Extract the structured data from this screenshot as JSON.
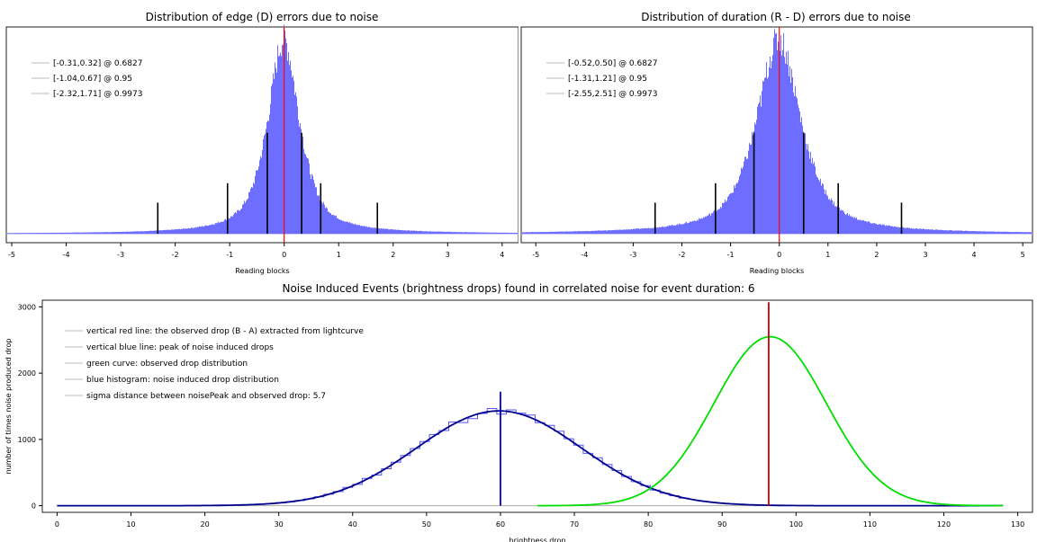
{
  "chart_data": [
    {
      "type": "bar",
      "title": "Distribution of edge (D) errors due to noise",
      "xlabel": "Reading blocks",
      "ylabel": "",
      "xlim": [
        -5.1,
        4.3
      ],
      "x_ticks": [
        -5,
        -4,
        -3,
        -2,
        -1,
        0,
        1,
        2,
        3,
        4
      ],
      "grid": false,
      "histogram": {
        "center": -0.01,
        "sigma": 0.32,
        "color": "#6d6dff"
      },
      "peak_line": {
        "x": 0.0,
        "color": "#ff0000"
      },
      "interval_lines": [
        {
          "x": -0.31,
          "height": 0.52
        },
        {
          "x": 0.32,
          "height": 0.52
        },
        {
          "x": -1.04,
          "height": 0.26
        },
        {
          "x": 0.67,
          "height": 0.26
        },
        {
          "x": -2.32,
          "height": 0.16
        },
        {
          "x": 1.71,
          "height": 0.16
        }
      ],
      "legend": [
        "[-0.31,0.32] @ 0.6827",
        "[-1.04,0.67] @ 0.95",
        "[-2.32,1.71] @ 0.9973"
      ],
      "legend_position": "top-left"
    },
    {
      "type": "bar",
      "title": "Distribution of duration (R - D) errors due to noise",
      "xlabel": "Reading blocks",
      "ylabel": "",
      "xlim": [
        -5.3,
        5.2
      ],
      "x_ticks": [
        -5,
        -4,
        -3,
        -2,
        -1,
        0,
        1,
        2,
        3,
        4,
        5
      ],
      "grid": false,
      "histogram": {
        "center": -0.01,
        "sigma": 0.5,
        "color": "#6d6dff"
      },
      "peak_line": {
        "x": 0.0,
        "color": "#ff0000"
      },
      "interval_lines": [
        {
          "x": -0.52,
          "height": 0.52
        },
        {
          "x": 0.5,
          "height": 0.52
        },
        {
          "x": -1.31,
          "height": 0.26
        },
        {
          "x": 1.21,
          "height": 0.26
        },
        {
          "x": -2.55,
          "height": 0.16
        },
        {
          "x": 2.51,
          "height": 0.16
        }
      ],
      "legend": [
        "[-0.52,0.50] @ 0.6827",
        "[-1.31,1.21] @ 0.95",
        "[-2.55,2.51] @ 0.9973"
      ],
      "legend_position": "top-left"
    },
    {
      "type": "line",
      "title": "Noise Induced Events (brightness drops) found in correlated noise for event duration: 6",
      "xlabel": "brightness drop",
      "ylabel": "number of times noise produced drop",
      "xlim": [
        -2,
        132
      ],
      "ylim": [
        -100,
        3100
      ],
      "x_ticks": [
        0,
        10,
        20,
        30,
        40,
        50,
        60,
        70,
        80,
        90,
        100,
        110,
        120,
        130
      ],
      "y_ticks": [
        0,
        1000,
        2000,
        3000
      ],
      "grid": false,
      "series": [
        {
          "name": "blue histogram: noise induced drop distribution",
          "kind": "gaussian",
          "mean": 59.8,
          "sigma": 11.2,
          "amplitude": 1430,
          "x_range": [
            0,
            128
          ],
          "color": "#00008b"
        },
        {
          "name": "green curve: observed drop distribution",
          "kind": "gaussian",
          "mean": 96.5,
          "sigma": 7.6,
          "amplitude": 2550,
          "x_range": [
            65,
            128
          ],
          "color": "#00dd00"
        }
      ],
      "vertical_lines": [
        {
          "name": "vertical blue line: peak of noise induced drops",
          "x": 60.0,
          "y_top": 1720,
          "color": "#0000cc"
        },
        {
          "name": "vertical red line: the observed drop (B - A) extracted from lightcurve",
          "x": 96.3,
          "y_top": 3070,
          "color": "#cc0000"
        }
      ],
      "legend": [
        "vertical red line: the observed drop (B - A) extracted from lightcurve",
        "vertical blue line: peak of noise induced drops",
        "green curve: observed drop distribution",
        "blue histogram: noise induced drop distribution",
        "sigma distance between noisePeak and observed drop: 5.7"
      ],
      "legend_position": "top-left"
    }
  ]
}
